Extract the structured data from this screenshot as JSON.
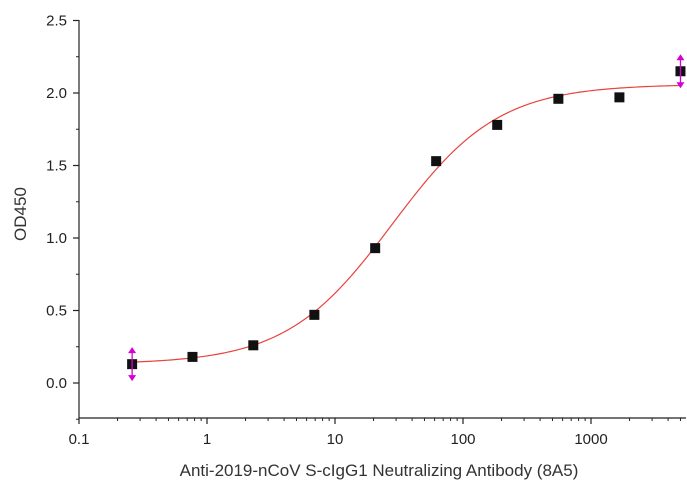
{
  "chart_data": {
    "type": "scatter",
    "title": "",
    "xlabel": "Anti-2019-nCoV S-cIgG1 Neutralizing Antibody (8A5)",
    "ylabel": "OD450",
    "x_scale": "log",
    "xlim": [
      0.1,
      5000
    ],
    "ylim": [
      -0.25,
      2.5
    ],
    "x_ticks": [
      "0.1",
      "1",
      "10",
      "100",
      "1000"
    ],
    "y_ticks": [
      "0.0",
      "0.5",
      "1.0",
      "1.5",
      "2.0",
      "2.5"
    ],
    "grid": false,
    "series": [
      {
        "points": [
          {
            "x": 0.26,
            "y": 0.13
          },
          {
            "x": 0.77,
            "y": 0.18
          },
          {
            "x": 2.3,
            "y": 0.26
          },
          {
            "x": 6.9,
            "y": 0.47
          },
          {
            "x": 20.6,
            "y": 0.93
          },
          {
            "x": 61.7,
            "y": 1.53
          },
          {
            "x": 185,
            "y": 1.78
          },
          {
            "x": 556,
            "y": 1.96
          },
          {
            "x": 1667,
            "y": 1.97
          },
          {
            "x": 5000,
            "y": 2.15
          }
        ],
        "marker_color": "#111111"
      }
    ],
    "fit_curve": {
      "model": "4PL",
      "bottom": 0.13,
      "top": 2.06,
      "ec50": 28,
      "hill": 1.05,
      "color": "#e8433f"
    },
    "error_markers": {
      "color": "#d400d4",
      "points": [
        {
          "x": 0.26,
          "y": 0.13
        },
        {
          "x": 5000,
          "y": 2.15
        }
      ]
    }
  }
}
